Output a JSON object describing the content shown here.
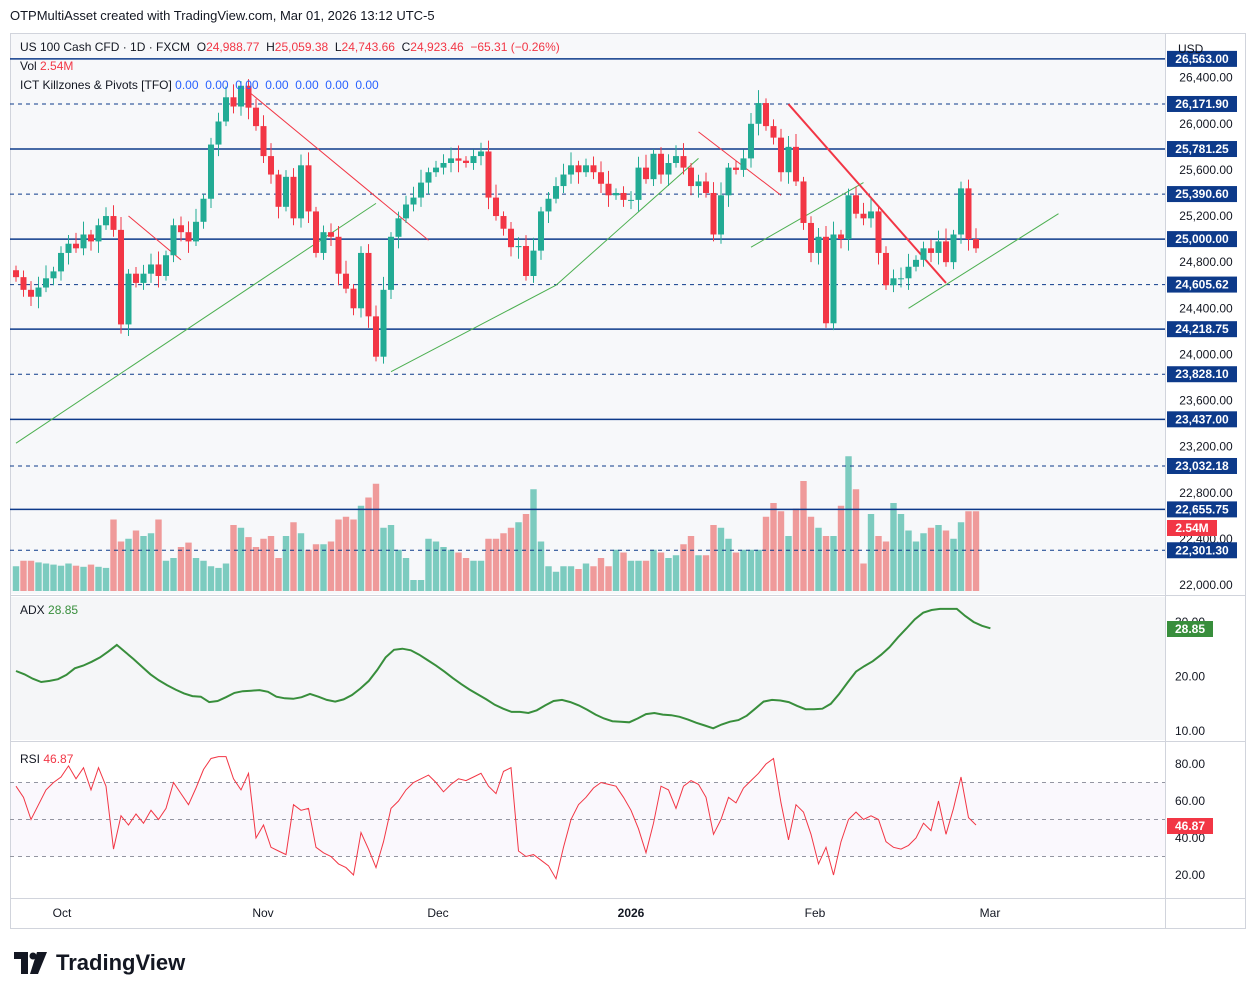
{
  "header": {
    "text": "OTPMultiAsset created with TradingView.com, Mar 01, 2026 13:12 UTC-5"
  },
  "legend": {
    "symbol": "US 100 Cash CFD · 1D · FXCM",
    "o_label": "O",
    "o_value": "24,988.77",
    "h_label": "H",
    "h_value": "25,059.38",
    "l_label": "L",
    "l_value": "24,743.66",
    "c_label": "C",
    "c_value": "24,923.46",
    "change": "−65.31 (−0.26%)",
    "vol_label": "Vol",
    "vol_value": "2.54M",
    "indicator_name": "ICT Killzones & Pivots [TFO]",
    "indicator_values": "0.00  0.00  0.00  0.00  0.00  0.00  0.00"
  },
  "currency": "USD",
  "adx_legend": {
    "label": "ADX",
    "value": "28.85"
  },
  "rsi_legend": {
    "label": "RSI",
    "value": "46.87"
  },
  "brand": {
    "name": "TradingView"
  },
  "colors": {
    "up": "#22ab94",
    "down": "#f23645",
    "vol_up": "#7ccbbf",
    "vol_down": "#ef9a9a",
    "level": "#0d3a8a",
    "adx": "#388e3c",
    "rsi": "#f23645",
    "trend": "#4caf50"
  },
  "chart_data": [
    {
      "type": "candlestick",
      "title": "US 100 Cash CFD · 1D · FXCM",
      "x_ticks": [
        "Oct",
        "Nov",
        "Dec",
        "2026",
        "Feb",
        "Mar"
      ],
      "y_ticks": [
        "22,000.00",
        "22,400.00",
        "22,800.00",
        "23,200.00",
        "23,600.00",
        "24,000.00",
        "24,400.00",
        "24,800.00",
        "25,200.00",
        "25,600.00",
        "26,000.00",
        "26,400.00"
      ],
      "ylim": [
        22000,
        26640
      ],
      "levels": [
        {
          "value": 26563.0,
          "label": "26,563.00",
          "style": "solid"
        },
        {
          "value": 26171.9,
          "label": "26,171.90",
          "style": "dashed"
        },
        {
          "value": 25781.25,
          "label": "25,781.25",
          "style": "solid"
        },
        {
          "value": 25390.6,
          "label": "25,390.60",
          "style": "dashed"
        },
        {
          "value": 25000.0,
          "label": "25,000.00",
          "style": "solid"
        },
        {
          "value": 24605.62,
          "label": "24,605.62",
          "style": "dashed"
        },
        {
          "value": 24218.75,
          "label": "24,218.75",
          "style": "solid"
        },
        {
          "value": 23828.1,
          "label": "23,828.10",
          "style": "dashed"
        },
        {
          "value": 23437.0,
          "label": "23,437.00",
          "style": "solid"
        },
        {
          "value": 23032.18,
          "label": "23,032.18",
          "style": "dashed"
        },
        {
          "value": 22655.75,
          "label": "22,655.75",
          "style": "solid"
        },
        {
          "value": 22301.3,
          "label": "22,301.30",
          "style": "dashed"
        }
      ],
      "closes": [
        24670,
        24560,
        24500,
        24580,
        24660,
        24720,
        24880,
        24960,
        24920,
        25040,
        24980,
        25120,
        25200,
        25080,
        24260,
        24700,
        24620,
        24700,
        24780,
        24680,
        24860,
        25120,
        25060,
        24980,
        25150,
        25350,
        25820,
        26020,
        26230,
        26150,
        26330,
        26140,
        25980,
        25720,
        25560,
        25280,
        25540,
        25180,
        25640,
        25240,
        24880,
        25060,
        25020,
        24700,
        24570,
        24400,
        24880,
        24330,
        23980,
        24560,
        25020,
        25180,
        25300,
        25360,
        25490,
        25580,
        25620,
        25660,
        25700,
        25680,
        25660,
        25720,
        25760,
        25360,
        25200,
        25090,
        24930,
        24940,
        24680,
        24900,
        25240,
        25350,
        25460,
        25560,
        25640,
        25580,
        25640,
        25580,
        25480,
        25380,
        25400,
        25340,
        25340,
        25620,
        25520,
        25740,
        25560,
        25660,
        25720,
        25620,
        25460,
        25500,
        25400,
        25040,
        25380,
        25620,
        25600,
        25700,
        26000,
        26180,
        25980,
        25880,
        25580,
        25800,
        25500,
        25140,
        24880,
        25020,
        24270,
        25040,
        25000,
        25380,
        25220,
        25180,
        25240,
        24880,
        24600,
        24660,
        24660,
        24760,
        24820,
        24920,
        24880,
        24980,
        24800,
        25040,
        25440,
        25000,
        24920
      ]
    },
    {
      "type": "bar",
      "title": "Vol",
      "value_label": "2.54M",
      "values": [
        0.45,
        0.55,
        0.55,
        0.52,
        0.5,
        0.48,
        0.46,
        0.5,
        0.46,
        0.44,
        0.48,
        0.44,
        0.42,
        1.3,
        0.9,
        0.95,
        1.1,
        1.0,
        1.05,
        1.3,
        0.55,
        0.6,
        0.8,
        0.88,
        0.6,
        0.55,
        0.45,
        0.42,
        0.5,
        1.2,
        1.15,
        0.98,
        0.8,
        0.95,
        1.0,
        0.6,
        1.0,
        1.25,
        1.05,
        0.75,
        0.85,
        0.85,
        0.9,
        1.3,
        1.35,
        1.3,
        1.55,
        1.7,
        1.95,
        1.15,
        1.2,
        0.75,
        0.6,
        0.2,
        0.2,
        0.95,
        0.9,
        0.8,
        0.75,
        0.7,
        0.6,
        0.55,
        0.55,
        0.95,
        0.95,
        1.05,
        1.15,
        1.25,
        1.4,
        1.85,
        0.9,
        0.45,
        0.35,
        0.45,
        0.45,
        0.4,
        0.5,
        0.45,
        0.6,
        0.45,
        0.75,
        0.7,
        0.55,
        0.55,
        0.55,
        0.75,
        0.7,
        0.6,
        0.65,
        0.85,
        1.0,
        0.65,
        0.65,
        1.2,
        1.15,
        0.95,
        0.7,
        0.75,
        0.75,
        0.75,
        1.35,
        1.6,
        1.45,
        1.0,
        1.5,
        2.0,
        1.35,
        1.15,
        1.0,
        1.0,
        1.55,
        2.45,
        1.85,
        0.5,
        1.4,
        1.0,
        0.9,
        1.6,
        1.4,
        1.1,
        0.9,
        1.05,
        1.15,
        1.2,
        1.1,
        0.95,
        1.25,
        1.45,
        1.45
      ],
      "ylim_millions": [
        0,
        4.0
      ]
    },
    {
      "type": "line",
      "title": "ADX",
      "series": [
        {
          "name": "ADX",
          "value_label": "28.85",
          "values": [
            21.0,
            20.4,
            19.6,
            19.0,
            19.2,
            19.5,
            20.3,
            21.5,
            22.0,
            22.7,
            23.5,
            24.6,
            25.8,
            24.5,
            23.2,
            21.8,
            20.4,
            19.3,
            18.4,
            17.6,
            16.9,
            16.4,
            16.3,
            15.3,
            15.5,
            16.2,
            17.0,
            17.3,
            17.4,
            17.5,
            17.2,
            16.3,
            16.0,
            15.9,
            16.2,
            16.8,
            16.3,
            15.7,
            15.4,
            15.8,
            16.6,
            17.8,
            19.2,
            21.2,
            23.5,
            24.9,
            25.1,
            24.8,
            24.0,
            23.0,
            22.0,
            20.9,
            19.7,
            18.6,
            17.6,
            16.7,
            15.8,
            14.8,
            14.1,
            13.5,
            13.5,
            13.3,
            13.8,
            14.7,
            15.5,
            15.7,
            15.3,
            14.7,
            13.9,
            13.0,
            12.3,
            11.8,
            11.7,
            11.6,
            12.3,
            13.1,
            13.3,
            13.0,
            12.9,
            12.6,
            12.1,
            11.5,
            11.0,
            10.5,
            11.2,
            11.7,
            12.0,
            12.8,
            14.1,
            15.4,
            15.7,
            15.6,
            15.3,
            14.6,
            14.0,
            14.0,
            14.1,
            15.0,
            16.8,
            18.9,
            20.9,
            21.9,
            22.8,
            24.0,
            25.4,
            27.2,
            28.8,
            30.5,
            31.7,
            32.2,
            32.4,
            32.4,
            32.4,
            31.1,
            30.0,
            29.3,
            28.85
          ]
        }
      ],
      "y_ticks": [
        "10.00",
        "20.00",
        "30.00"
      ],
      "ylim": [
        10,
        32.5
      ]
    },
    {
      "type": "line",
      "title": "RSI",
      "series": [
        {
          "name": "RSI",
          "value_label": "46.87",
          "values": [
            68,
            62,
            50,
            58,
            66,
            70,
            73,
            79,
            72,
            78,
            66,
            78,
            68,
            34,
            52,
            47,
            53,
            48,
            55,
            50,
            56,
            70,
            64,
            58,
            67,
            77,
            83,
            84,
            84,
            72,
            66,
            75,
            40,
            47,
            35,
            33,
            31,
            58,
            55,
            56,
            35,
            32,
            30,
            26,
            24,
            20,
            43,
            34,
            24,
            38,
            56,
            60,
            66,
            70,
            72,
            74,
            70,
            65,
            69,
            72,
            71,
            73,
            75,
            68,
            64,
            76,
            78,
            33,
            30,
            31,
            28,
            25,
            18,
            35,
            50,
            58,
            62,
            67,
            70,
            69,
            68,
            62,
            55,
            45,
            32,
            48,
            68,
            66,
            56,
            68,
            71,
            69,
            62,
            42,
            50,
            62,
            59,
            67,
            71,
            75,
            80,
            83,
            59,
            39,
            58,
            54,
            42,
            26,
            35,
            20,
            38,
            50,
            54,
            50,
            52,
            50,
            38,
            35,
            34,
            36,
            40,
            48,
            44,
            60,
            42,
            56,
            73,
            51,
            47
          ]
        }
      ],
      "y_ticks": [
        "20.00",
        "40.00",
        "60.00",
        "80.00"
      ],
      "ylim": [
        10,
        90
      ]
    }
  ]
}
